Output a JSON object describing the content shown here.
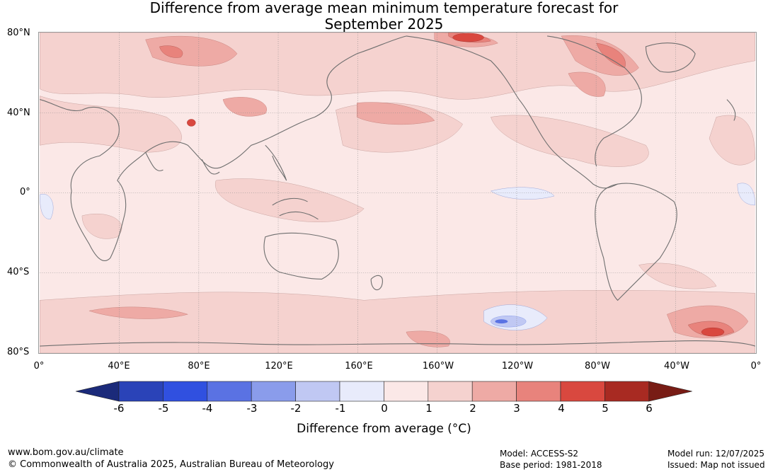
{
  "title": {
    "line1": "Difference from average mean minimum temperature forecast for",
    "line2": "September 2025"
  },
  "map": {
    "lat_labels": [
      "80°N",
      "40°N",
      "0°",
      "40°S",
      "80°S"
    ],
    "lon_labels": [
      "0°",
      "40°E",
      "80°E",
      "120°E",
      "160°E",
      "160°W",
      "120°W",
      "80°W",
      "40°W",
      "0°"
    ],
    "gridlines": true,
    "projection": "Plate Carrée, centered 180°"
  },
  "colorbar": {
    "ticks": [
      "-6",
      "-5",
      "-4",
      "-3",
      "-2",
      "-1",
      "0",
      "1",
      "2",
      "3",
      "4",
      "5",
      "6"
    ],
    "colors": [
      "#1b2a7a",
      "#2a43b8",
      "#3050e0",
      "#5a72e3",
      "#8a9ceb",
      "#c0c8f3",
      "#e8ebfb",
      "#fbe8e7",
      "#f5d2cf",
      "#eeaaa5",
      "#e8837c",
      "#d9483f",
      "#a82a22",
      "#781c15"
    ],
    "title": "Difference from average (°C)",
    "extend": "both"
  },
  "footer": {
    "url": "www.bom.gov.au/climate",
    "copyright": "© Commonwealth of Australia 2025, Australian Bureau of Meteorology",
    "model": "Model: ACCESS-S2",
    "base_period": "Base period: 1981-2018",
    "model_run": "Model run: 12/07/2025",
    "issued": "Issued: Map not issued"
  }
}
